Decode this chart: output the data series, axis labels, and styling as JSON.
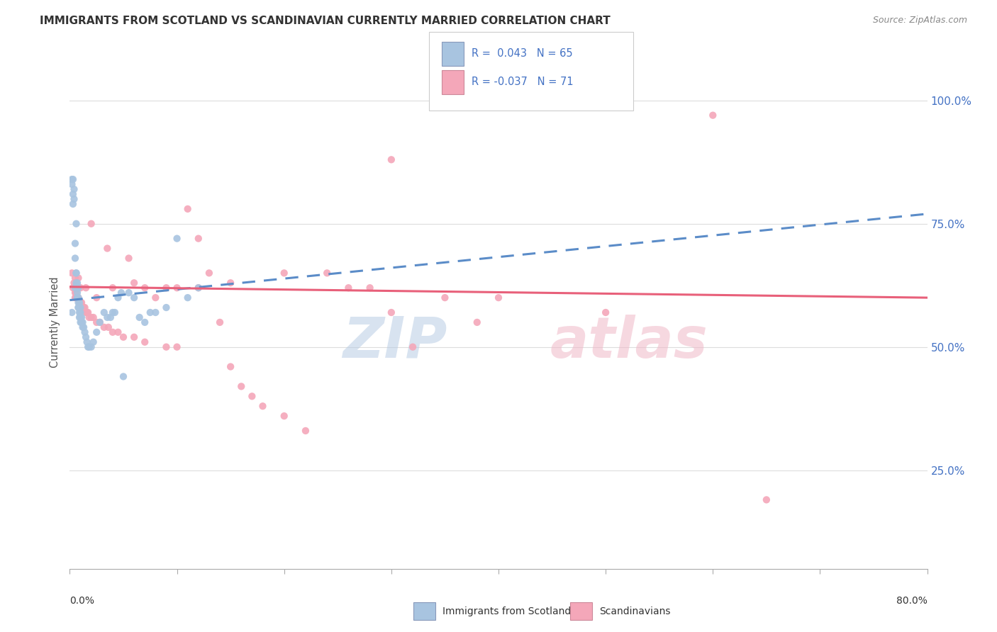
{
  "title": "IMMIGRANTS FROM SCOTLAND VS SCANDINAVIAN CURRENTLY MARRIED CORRELATION CHART",
  "source": "Source: ZipAtlas.com",
  "ylabel": "Currently Married",
  "scotland_color": "#a8c4e0",
  "scandinavian_color": "#f4a7b9",
  "scotland_line_color": "#5b8cc8",
  "scandinavian_line_color": "#e8607a",
  "xmin": 0.0,
  "xmax": 0.8,
  "ymin": 0.05,
  "ymax": 1.05,
  "grid_color": "#dddddd",
  "background_color": "#ffffff",
  "scotland_trend_x0": 0.0,
  "scotland_trend_y0": 0.595,
  "scotland_trend_x1": 0.8,
  "scotland_trend_y1": 0.77,
  "scandinavian_trend_x0": 0.0,
  "scandinavian_trend_y0": 0.622,
  "scandinavian_trend_x1": 0.8,
  "scandinavian_trend_y1": 0.6,
  "scotland_x": [
    0.002,
    0.002,
    0.003,
    0.003,
    0.004,
    0.004,
    0.005,
    0.005,
    0.006,
    0.006,
    0.006,
    0.006,
    0.007,
    0.007,
    0.007,
    0.007,
    0.008,
    0.008,
    0.008,
    0.008,
    0.009,
    0.009,
    0.009,
    0.01,
    0.01,
    0.01,
    0.01,
    0.011,
    0.011,
    0.012,
    0.012,
    0.013,
    0.014,
    0.015,
    0.016,
    0.017,
    0.018,
    0.02,
    0.022,
    0.025,
    0.028,
    0.032,
    0.035,
    0.038,
    0.04,
    0.042,
    0.045,
    0.048,
    0.05,
    0.055,
    0.06,
    0.065,
    0.07,
    0.075,
    0.08,
    0.09,
    0.1,
    0.11,
    0.12,
    0.002,
    0.003,
    0.005,
    0.007,
    0.008,
    0.009
  ],
  "scotland_y": [
    0.57,
    0.83,
    0.81,
    0.79,
    0.82,
    0.8,
    0.71,
    0.68,
    0.75,
    0.65,
    0.65,
    0.63,
    0.63,
    0.62,
    0.61,
    0.6,
    0.62,
    0.6,
    0.59,
    0.58,
    0.59,
    0.58,
    0.57,
    0.58,
    0.57,
    0.56,
    0.55,
    0.56,
    0.55,
    0.55,
    0.54,
    0.54,
    0.53,
    0.52,
    0.51,
    0.5,
    0.5,
    0.5,
    0.51,
    0.53,
    0.55,
    0.57,
    0.56,
    0.56,
    0.57,
    0.57,
    0.6,
    0.61,
    0.44,
    0.61,
    0.6,
    0.56,
    0.55,
    0.57,
    0.57,
    0.58,
    0.72,
    0.6,
    0.62,
    0.84,
    0.84,
    0.62,
    0.6,
    0.58,
    0.56
  ],
  "scandinavian_x": [
    0.002,
    0.003,
    0.004,
    0.005,
    0.005,
    0.006,
    0.006,
    0.007,
    0.008,
    0.009,
    0.01,
    0.011,
    0.012,
    0.013,
    0.014,
    0.015,
    0.016,
    0.017,
    0.018,
    0.02,
    0.022,
    0.025,
    0.028,
    0.032,
    0.036,
    0.04,
    0.045,
    0.05,
    0.06,
    0.07,
    0.08,
    0.09,
    0.1,
    0.11,
    0.12,
    0.13,
    0.14,
    0.15,
    0.16,
    0.17,
    0.18,
    0.2,
    0.22,
    0.24,
    0.26,
    0.28,
    0.3,
    0.32,
    0.35,
    0.38,
    0.02,
    0.035,
    0.055,
    0.07,
    0.09,
    0.12,
    0.15,
    0.2,
    0.3,
    0.4,
    0.5,
    0.008,
    0.01,
    0.015,
    0.025,
    0.04,
    0.06,
    0.1,
    0.005,
    0.6,
    0.65
  ],
  "scandinavian_y": [
    0.65,
    0.62,
    0.63,
    0.61,
    0.6,
    0.61,
    0.6,
    0.6,
    0.6,
    0.59,
    0.59,
    0.59,
    0.58,
    0.58,
    0.58,
    0.57,
    0.57,
    0.57,
    0.56,
    0.56,
    0.56,
    0.55,
    0.55,
    0.54,
    0.54,
    0.53,
    0.53,
    0.52,
    0.52,
    0.51,
    0.6,
    0.5,
    0.5,
    0.78,
    0.72,
    0.65,
    0.55,
    0.46,
    0.42,
    0.4,
    0.38,
    0.36,
    0.33,
    0.65,
    0.62,
    0.62,
    0.57,
    0.5,
    0.6,
    0.55,
    0.75,
    0.7,
    0.68,
    0.62,
    0.62,
    0.62,
    0.63,
    0.65,
    0.88,
    0.6,
    0.57,
    0.64,
    0.62,
    0.62,
    0.6,
    0.62,
    0.63,
    0.62,
    0.64,
    0.97,
    0.19
  ]
}
